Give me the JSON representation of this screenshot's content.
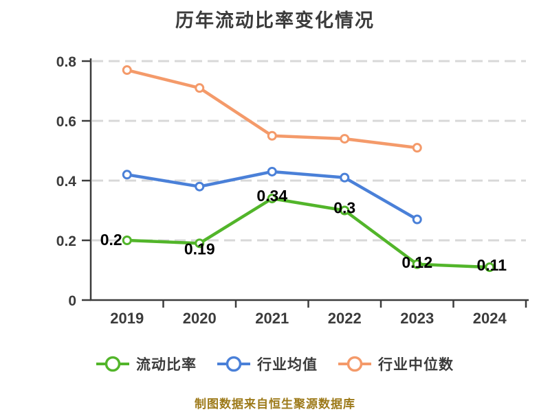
{
  "title": "历年流动比率变化情况",
  "footer": "制图数据来自恒生聚源数据库",
  "colors": {
    "title_text": "#3b3b3b",
    "axis": "#3b3b3b",
    "gridline": "#d8d8d8",
    "point_label": "#000000",
    "footer_text": "#9d7a1a",
    "background": "#ffffff",
    "marker_fill": "#ffffff"
  },
  "chart_data": {
    "type": "line",
    "title": "历年流动比率变化情况",
    "categories": [
      "2019",
      "2020",
      "2021",
      "2022",
      "2023",
      "2024"
    ],
    "series": [
      {
        "id": "current-ratio",
        "name": "流动比率",
        "color": "#52b52a",
        "values": [
          0.2,
          0.19,
          0.34,
          0.3,
          0.12,
          0.11
        ],
        "point_labels": [
          "0.2",
          "0.19",
          "0.34",
          "0.3",
          "0.12",
          "0.11"
        ]
      },
      {
        "id": "industry-average",
        "name": "行业均值",
        "color": "#4a80d8",
        "values": [
          0.42,
          0.38,
          0.43,
          0.41,
          0.27,
          null
        ],
        "point_labels": null
      },
      {
        "id": "industry-median",
        "name": "行业中位数",
        "color": "#f49a6a",
        "values": [
          0.77,
          0.71,
          0.55,
          0.54,
          0.51,
          null
        ],
        "point_labels": null
      }
    ],
    "xlabel": "",
    "ylabel": "",
    "ylim": [
      0,
      0.8
    ],
    "yticks": [
      0,
      0.2,
      0.4,
      0.6,
      0.8
    ],
    "ytick_labels": [
      "0",
      "0.2",
      "0.4",
      "0.6",
      "0.8"
    ],
    "grid": "horizontal-dashed",
    "legend_position": "bottom",
    "marker_style": "circle-white-fill",
    "source_note": "制图数据来自恒生聚源数据库"
  }
}
